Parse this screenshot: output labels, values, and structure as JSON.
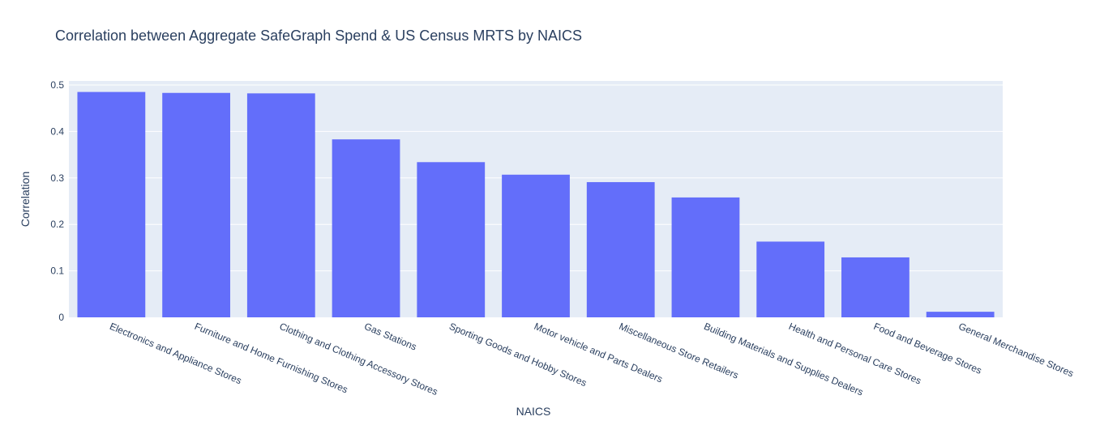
{
  "chart_data": {
    "type": "bar",
    "title": "Correlation between Aggregate SafeGraph Spend & US Census MRTS by NAICS",
    "xlabel": "NAICS",
    "ylabel": "Correlation",
    "categories": [
      "Electronics and Appliance Stores",
      "Furniture and Home Furnishing Stores",
      "Clothing and Clothing Accessory Stores",
      "Gas Stations",
      "Sporting Goods and Hobby Stores",
      "Motor vehicle and Parts Dealers",
      "Miscellaneous Store Retailers",
      "Building Materials and Supplies Dealers",
      "Health and Personal Care Stores",
      "Food and Beverage Stores",
      "General Merchandise Stores"
    ],
    "values": [
      0.485,
      0.483,
      0.482,
      0.383,
      0.334,
      0.307,
      0.291,
      0.258,
      0.163,
      0.129,
      0.012
    ],
    "ylim": [
      0,
      0.5
    ],
    "yticks": [
      0,
      0.1,
      0.2,
      0.3,
      0.4,
      0.5
    ],
    "ytick_labels": [
      "0",
      "0.1",
      "0.2",
      "0.3",
      "0.4",
      "0.5"
    ],
    "bar_color": "#636efa",
    "plot_bg": "#e5ecf6",
    "grid": true
  }
}
